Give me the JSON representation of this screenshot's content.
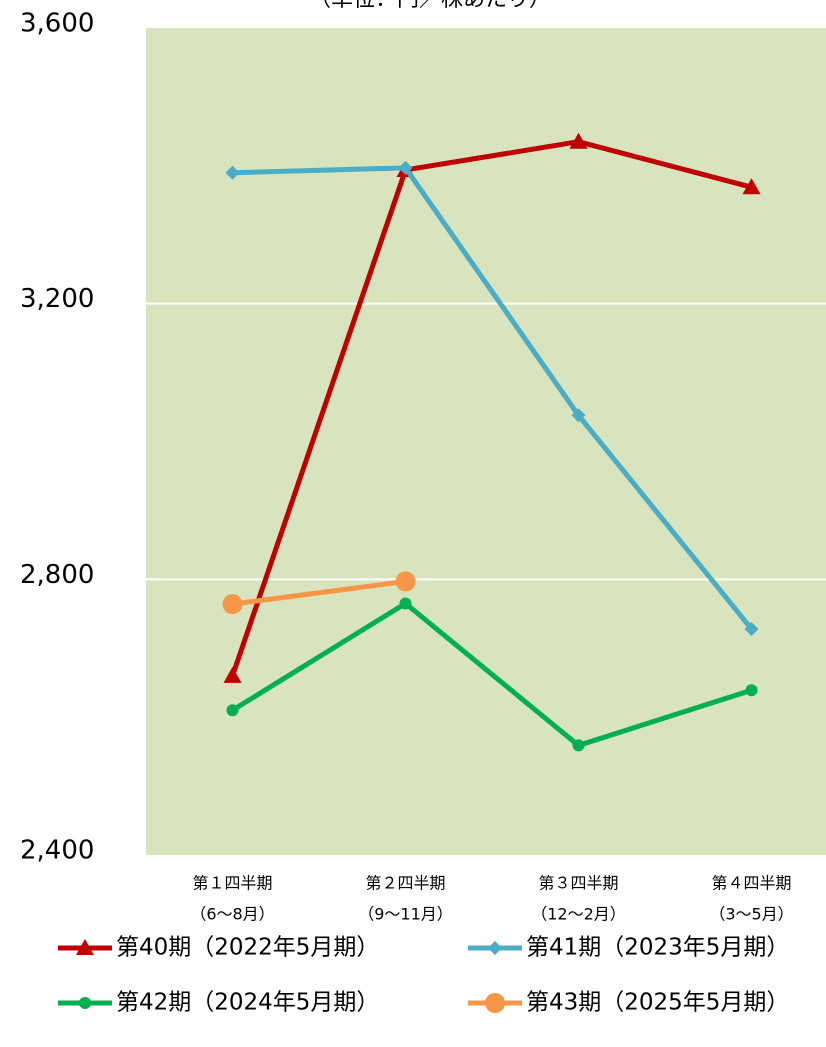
{
  "chart_data": {
    "type": "line",
    "title": "（単位：円／株あたり）",
    "categories": [
      "第１四半期",
      "第２四半期",
      "第３四半期",
      "第４四半期"
    ],
    "category_periods": [
      "（6～8月）",
      "（9～11月）",
      "（12～2月）",
      "（3～5月）"
    ],
    "series": [
      {
        "name": "第40期（2022年5月期）",
        "color": "#c00000",
        "marker": "triangle",
        "values": [
          2660,
          3394,
          3435,
          3369
        ]
      },
      {
        "name": "第41期（2023年5月期）",
        "color": "#4bacc6",
        "marker": "diamond",
        "values": [
          3390,
          3397,
          3038,
          2728
        ]
      },
      {
        "name": "第42期（2024年5月期）",
        "color": "#00b050",
        "marker": "circle",
        "values": [
          2610,
          2765,
          2559,
          2639
        ]
      },
      {
        "name": "第43期（2025年5月期）",
        "color": "#f79646",
        "marker": "big-circle",
        "values": [
          2764,
          2797,
          null,
          null
        ]
      }
    ],
    "ylim": [
      2400,
      3600
    ],
    "yticks": [
      {
        "value": 2400,
        "label": "2,400"
      },
      {
        "value": 2800,
        "label": "2,800"
      },
      {
        "value": 3200,
        "label": "3,200"
      },
      {
        "value": 3600,
        "label": "3,600"
      }
    ],
    "grid": true,
    "plot_color": "#d7e4bd"
  }
}
